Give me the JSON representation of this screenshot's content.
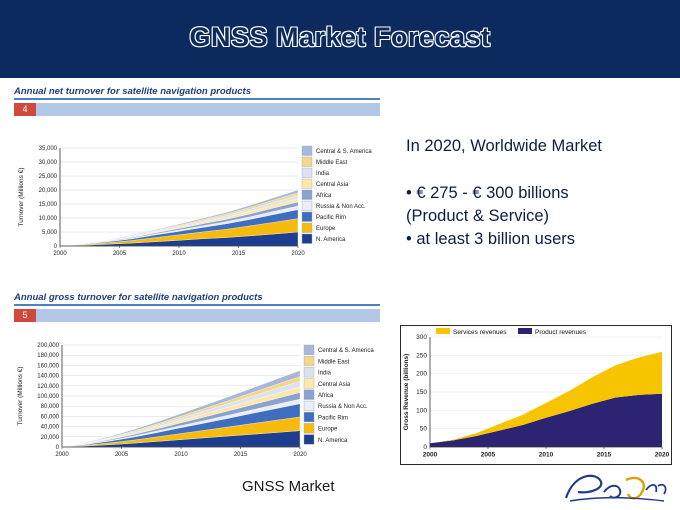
{
  "slide": {
    "title": "GNSS Market Forecast",
    "footer": "GNSS Market",
    "summary": {
      "heading": "In 2020, Worldwide Market",
      "bullets": [
        "• € 275 - € 300 billions",
        "(Product & Service)",
        "• at least 3 billion users"
      ]
    },
    "colors": {
      "background": "#0c2a5e",
      "panel": "#ffffff",
      "header_rule": "#4f7fbf",
      "badge": "#cf4a3c"
    }
  },
  "chart_data": [
    {
      "type": "area",
      "stacked": true,
      "title": "Annual net turnover for satellite navigation products",
      "badge": "4",
      "ylabel": "Turnover (Millions €)",
      "xlabel": "",
      "x": [
        2000,
        2002,
        2004,
        2006,
        2008,
        2010,
        2012,
        2014,
        2016,
        2018,
        2020
      ],
      "x_ticks": [
        "2000",
        "2005",
        "2010",
        "2015",
        "2020"
      ],
      "ylim": [
        0,
        35000
      ],
      "y_ticks": [
        "0",
        "5,000",
        "10,000",
        "15,000",
        "20,000",
        "25,000",
        "30,000",
        "35,000"
      ],
      "legend_position": "right",
      "series": [
        {
          "name": "N. America",
          "color": "#1e3f8f",
          "values": [
            0,
            250,
            650,
            1050,
            1550,
            2050,
            2600,
            3050,
            3650,
            4300,
            5000
          ]
        },
        {
          "name": "Europe",
          "color": "#f6bb0c",
          "values": [
            0,
            250,
            500,
            900,
            1450,
            1950,
            2450,
            2950,
            3550,
            4200,
            4800
          ]
        },
        {
          "name": "Pacific Rim",
          "color": "#3f6ec0",
          "values": [
            0,
            150,
            350,
            600,
            950,
            1250,
            1600,
            1950,
            2350,
            2800,
            3200
          ]
        },
        {
          "name": "Russia & Non Acc.",
          "color": "#e9edf6",
          "values": [
            0,
            50,
            120,
            200,
            320,
            450,
            600,
            750,
            900,
            1100,
            1300
          ]
        },
        {
          "name": "Africa",
          "color": "#8aa2d0",
          "values": [
            0,
            80,
            150,
            280,
            420,
            550,
            700,
            850,
            1050,
            1250,
            1400
          ]
        },
        {
          "name": "Central Asia",
          "color": "#fde7a9",
          "values": [
            0,
            60,
            120,
            200,
            320,
            420,
            550,
            700,
            850,
            1000,
            1200
          ]
        },
        {
          "name": "India",
          "color": "#dbe3f1",
          "values": [
            0,
            50,
            100,
            200,
            300,
            400,
            500,
            650,
            800,
            950,
            1100
          ]
        },
        {
          "name": "Middle East",
          "color": "#f2d98a",
          "values": [
            0,
            50,
            100,
            150,
            250,
            350,
            450,
            550,
            700,
            850,
            1000
          ]
        },
        {
          "name": "Central & S. America",
          "color": "#a9b7d8",
          "values": [
            0,
            50,
            100,
            200,
            250,
            350,
            450,
            550,
            700,
            850,
            1000
          ]
        }
      ]
    },
    {
      "type": "area",
      "stacked": true,
      "title": "Annual gross turnover for satellite navigation products",
      "badge": "5",
      "ylabel": "Turnover (Millions €)",
      "xlabel": "",
      "x": [
        2000,
        2002,
        2004,
        2006,
        2008,
        2010,
        2012,
        2014,
        2016,
        2018,
        2020
      ],
      "x_ticks": [
        "2000",
        "2005",
        "2010",
        "2015",
        "2020"
      ],
      "ylim": [
        0,
        200000
      ],
      "y_ticks": [
        "0",
        "20,000",
        "40,000",
        "60,000",
        "80,000",
        "100,000",
        "120,000",
        "140,000",
        "160,000",
        "180,000",
        "200,000"
      ],
      "legend_position": "right",
      "series": [
        {
          "name": "N. America",
          "color": "#1e3f8f",
          "values": [
            0,
            2000,
            4500,
            7500,
            11000,
            14500,
            18000,
            21500,
            25000,
            28500,
            32000
          ]
        },
        {
          "name": "Europe",
          "color": "#f6bb0c",
          "values": [
            0,
            1500,
            3500,
            6000,
            9000,
            12000,
            15000,
            18000,
            21000,
            24000,
            27000
          ]
        },
        {
          "name": "Pacific Rim",
          "color": "#3f6ec0",
          "values": [
            0,
            1500,
            3500,
            6000,
            8500,
            11500,
            14000,
            17000,
            20000,
            23000,
            26000
          ]
        },
        {
          "name": "Russia & Non Acc.",
          "color": "#e9edf6",
          "values": [
            0,
            500,
            1200,
            2000,
            3000,
            4000,
            5000,
            6000,
            7000,
            8000,
            9000
          ]
        },
        {
          "name": "Africa",
          "color": "#8aa2d0",
          "values": [
            0,
            800,
            1800,
            3000,
            4200,
            5500,
            7000,
            8500,
            10000,
            11500,
            13000
          ]
        },
        {
          "name": "Central Asia",
          "color": "#fde7a9",
          "values": [
            0,
            700,
            1500,
            2500,
            3500,
            4700,
            6000,
            7200,
            8500,
            9800,
            11000
          ]
        },
        {
          "name": "India",
          "color": "#dbe3f1",
          "values": [
            0,
            700,
            1500,
            2400,
            3400,
            4500,
            5800,
            7000,
            8400,
            9700,
            11000
          ]
        },
        {
          "name": "Middle East",
          "color": "#f2d98a",
          "values": [
            0,
            500,
            1200,
            2000,
            2800,
            3800,
            4800,
            5800,
            6900,
            8000,
            9000
          ]
        },
        {
          "name": "Central & S. America",
          "color": "#a9b7d8",
          "values": [
            0,
            800,
            1700,
            2700,
            3800,
            5000,
            6300,
            7500,
            8900,
            10300,
            12000
          ]
        }
      ]
    },
    {
      "type": "area",
      "stacked": true,
      "title": "",
      "ylabel": "Gross Revenue (billions)",
      "xlabel": "",
      "x": [
        2000,
        2002,
        2004,
        2006,
        2008,
        2010,
        2012,
        2014,
        2016,
        2018,
        2020
      ],
      "x_ticks": [
        "2000",
        "2005",
        "2010",
        "2015",
        "2020"
      ],
      "ylim": [
        0,
        300
      ],
      "y_ticks": [
        "0",
        "50",
        "100",
        "150",
        "200",
        "250",
        "300"
      ],
      "legend_position": "top",
      "series": [
        {
          "name": "Product revenues",
          "color": "#2c2372",
          "values": [
            10,
            18,
            30,
            45,
            60,
            80,
            98,
            118,
            135,
            142,
            145
          ]
        },
        {
          "name": "Services revenues",
          "color": "#f6c500",
          "values": [
            0,
            2,
            8,
            18,
            28,
            40,
            55,
            72,
            88,
            102,
            115
          ]
        }
      ]
    }
  ]
}
